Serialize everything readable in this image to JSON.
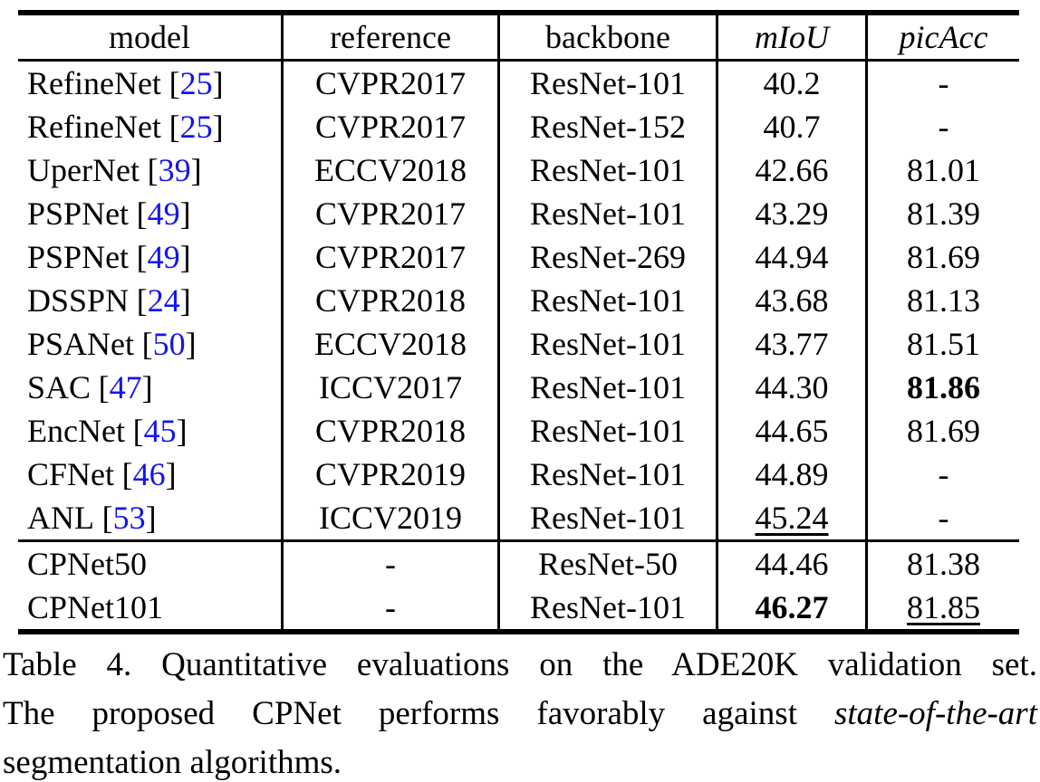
{
  "table": {
    "header": {
      "model": "model",
      "reference": "reference",
      "backbone": "backbone",
      "miou": "mIoU",
      "picacc": "picAcc"
    },
    "rows": [
      {
        "model": "RefineNet",
        "cite": "25",
        "reference": "CVPR2017",
        "backbone": "ResNet-101",
        "miou": "40.2",
        "picacc": "-"
      },
      {
        "model": "RefineNet",
        "cite": "25",
        "reference": "CVPR2017",
        "backbone": "ResNet-152",
        "miou": "40.7",
        "picacc": "-"
      },
      {
        "model": "UperNet",
        "cite": "39",
        "reference": "ECCV2018",
        "backbone": "ResNet-101",
        "miou": "42.66",
        "picacc": "81.01"
      },
      {
        "model": "PSPNet",
        "cite": "49",
        "reference": "CVPR2017",
        "backbone": "ResNet-101",
        "miou": "43.29",
        "picacc": "81.39"
      },
      {
        "model": "PSPNet",
        "cite": "49",
        "reference": "CVPR2017",
        "backbone": "ResNet-269",
        "miou": "44.94",
        "picacc": "81.69"
      },
      {
        "model": "DSSPN",
        "cite": "24",
        "reference": "CVPR2018",
        "backbone": "ResNet-101",
        "miou": "43.68",
        "picacc": "81.13"
      },
      {
        "model": "PSANet",
        "cite": "50",
        "reference": "ECCV2018",
        "backbone": "ResNet-101",
        "miou": "43.77",
        "picacc": "81.51"
      },
      {
        "model": "SAC",
        "cite": "47",
        "reference": "ICCV2017",
        "backbone": "ResNet-101",
        "miou": "44.30",
        "picacc": "81.86"
      },
      {
        "model": "EncNet",
        "cite": "45",
        "reference": "CVPR2018",
        "backbone": "ResNet-101",
        "miou": "44.65",
        "picacc": "81.69"
      },
      {
        "model": "CFNet",
        "cite": "46",
        "reference": "CVPR2019",
        "backbone": "ResNet-101",
        "miou": "44.89",
        "picacc": "-"
      },
      {
        "model": "ANL",
        "cite": "53",
        "reference": "ICCV2019",
        "backbone": "ResNet-101",
        "miou": "45.24",
        "picacc": "-"
      },
      {
        "model": "CPNet50",
        "reference": "-",
        "backbone": "ResNet-50",
        "miou": "44.46",
        "picacc": "81.38"
      },
      {
        "model": "CPNet101",
        "reference": "-",
        "backbone": "ResNet-101",
        "miou": "46.27",
        "picacc": "81.85"
      }
    ],
    "emphasis": {
      "bold_values": [
        "81.86",
        "46.27"
      ],
      "underlined_values": [
        "45.24",
        "81.85"
      ]
    }
  },
  "symbols": {
    "bracket_open": "[",
    "bracket_close": "]"
  },
  "caption": {
    "line1": "Table 4. Quantitative evaluations on the ADE20K validation set.",
    "line2_prefix": "The proposed CPNet performs favorably against ",
    "line2_italic": "state-of-the-art",
    "line3": "segmentation algorithms."
  },
  "colors": {
    "citation": "#1414ee",
    "text": "#000000",
    "background": "#ffffff"
  }
}
